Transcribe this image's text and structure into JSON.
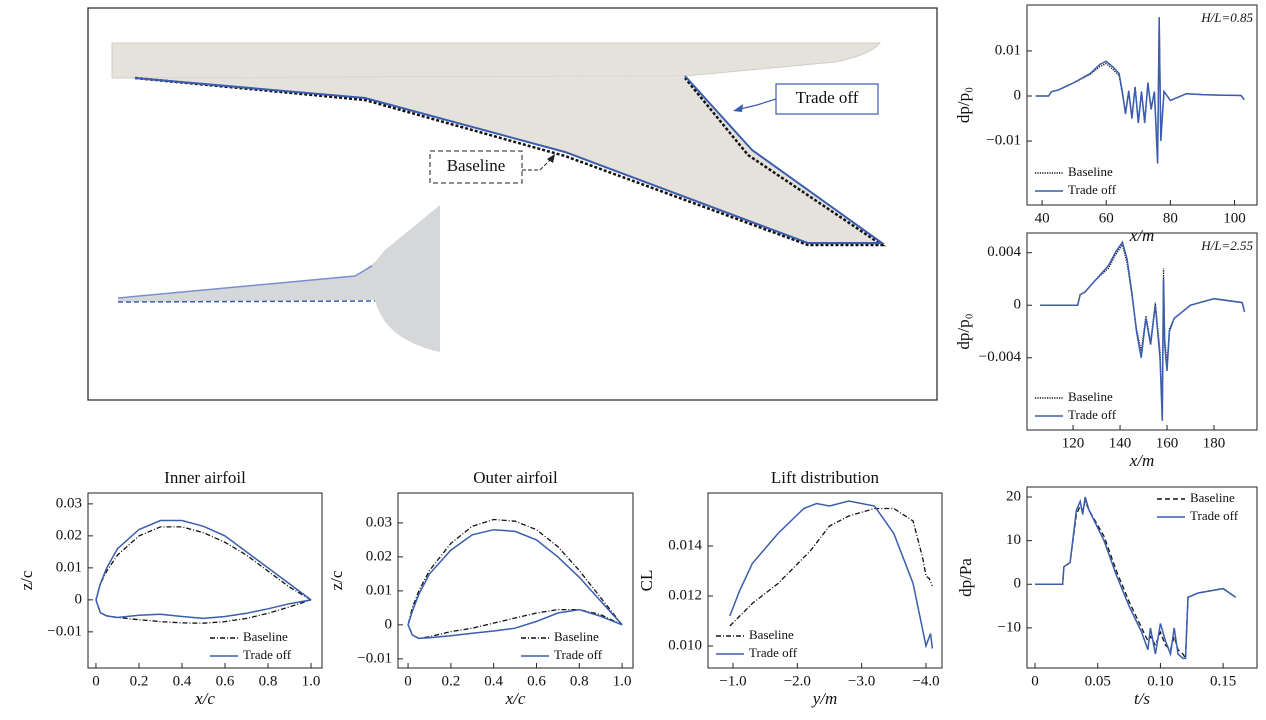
{
  "planform": {
    "labels": {
      "trade_off": "Trade off",
      "baseline": "Baseline"
    }
  },
  "chart_data": [
    {
      "type": "line",
      "annotation": "H/L=0.85",
      "xlabel": "x/m",
      "ylabel": "dp/p₀",
      "legend": "lower left",
      "xlim": [
        35.3,
        107
      ],
      "ylim": [
        -0.0242,
        0.0202
      ],
      "xticks": [
        40,
        60,
        80,
        100
      ],
      "yticks": [
        0.01,
        0,
        {
          "value": -0.01,
          "label": "−0.01"
        }
      ],
      "series": [
        {
          "name": "Baseline",
          "color": "#111111",
          "style": "dotted",
          "x": [
            38,
            42,
            43,
            45,
            50,
            55,
            58,
            60,
            62,
            64,
            65,
            66,
            67,
            68,
            69,
            70,
            71,
            72,
            73,
            74,
            75,
            76,
            76.5,
            77,
            78,
            80,
            85,
            90,
            95,
            102,
            103
          ],
          "values": [
            0,
            0,
            0.001,
            0.0013,
            0.003,
            0.0048,
            0.0065,
            0.0072,
            0.006,
            0.0045,
            0.0005,
            -0.0035,
            0.0012,
            -0.0045,
            0.002,
            -0.0055,
            0.0008,
            -0.0055,
            0.0025,
            -0.0025,
            0.0008,
            -0.013,
            0.0175,
            -0.009,
            0.001,
            -0.001,
            0.0005,
            0.0003,
            0.0002,
            0.0001,
            -0.0008
          ]
        },
        {
          "name": "Trade off",
          "color": "#3a5db0",
          "style": "solid",
          "x": [
            38,
            42,
            43,
            45,
            50,
            55,
            58,
            60,
            62,
            64,
            65,
            66,
            67,
            68,
            69,
            70,
            71,
            72,
            73,
            74,
            75,
            76,
            76.5,
            77,
            78,
            80,
            85,
            90,
            95,
            102,
            103
          ],
          "values": [
            0,
            0,
            0.001,
            0.0013,
            0.003,
            0.005,
            0.007,
            0.0077,
            0.0065,
            0.005,
            0.001,
            -0.004,
            0.001,
            -0.005,
            0.002,
            -0.006,
            0.001,
            -0.006,
            0.003,
            -0.003,
            0.001,
            -0.015,
            0.017,
            -0.01,
            0.001,
            -0.001,
            0.0005,
            0.0003,
            0.0002,
            0.0001,
            -0.0008
          ]
        }
      ]
    },
    {
      "type": "line",
      "annotation": "H/L=2.55",
      "xlabel": "x/m",
      "ylabel": "dp/p₀",
      "legend": "lower left",
      "xlim": [
        100.4,
        198.3
      ],
      "ylim": [
        -0.0095,
        0.0055
      ],
      "xticks": [
        120,
        140,
        160,
        180
      ],
      "yticks": [
        0.004,
        0,
        {
          "value": -0.004,
          "label": "−0.004"
        }
      ],
      "series": [
        {
          "name": "Baseline",
          "color": "#111111",
          "style": "dotted",
          "x": [
            106,
            122,
            123,
            125,
            130,
            135,
            138,
            141,
            143,
            145,
            147,
            149,
            151,
            153,
            155,
            157,
            158,
            158.5,
            159,
            160,
            161,
            163,
            170,
            180,
            192,
            193
          ],
          "values": [
            0,
            0,
            0.0008,
            0.001,
            0.002,
            0.0028,
            0.0038,
            0.0046,
            0.0032,
            0.0008,
            -0.0018,
            -0.0035,
            -0.0008,
            -0.0028,
            0.0002,
            -0.0035,
            -0.0078,
            0.0028,
            -0.0025,
            -0.0045,
            -0.0018,
            -0.001,
            0,
            0.0005,
            0.0002,
            -0.0005
          ]
        },
        {
          "name": "Trade off",
          "color": "#3a5db0",
          "style": "solid",
          "x": [
            106,
            122,
            123,
            125,
            130,
            135,
            138,
            141,
            143,
            145,
            147,
            149,
            151,
            153,
            155,
            157,
            158,
            158.5,
            159,
            160,
            161,
            163,
            170,
            180,
            192,
            193
          ],
          "values": [
            0,
            0,
            0.0008,
            0.001,
            0.002,
            0.003,
            0.004,
            0.0048,
            0.0035,
            0.001,
            -0.002,
            -0.004,
            -0.001,
            -0.003,
            0,
            -0.004,
            -0.0088,
            0.002,
            -0.003,
            -0.005,
            -0.002,
            -0.001,
            0,
            0.0005,
            0.0002,
            -0.0005
          ]
        }
      ]
    },
    {
      "type": "line",
      "title": "Inner airfoil",
      "xlabel": "x/c",
      "ylabel": "z/c",
      "legend": "lower right",
      "xlim": [
        -0.037,
        1.051
      ],
      "ylim": [
        -0.0213,
        0.0334
      ],
      "xticks": [
        0,
        0.2,
        0.4,
        0.6,
        0.8,
        {
          "value": 1,
          "label": "1.0"
        }
      ],
      "yticks": [
        0.03,
        0.02,
        0.01,
        0,
        {
          "value": -0.01,
          "label": "−0.01"
        }
      ],
      "series": [
        {
          "name": "Baseline",
          "color": "#111111",
          "style": "dashdot",
          "x": [
            1,
            0.9,
            0.8,
            0.7,
            0.6,
            0.5,
            0.4,
            0.3,
            0.2,
            0.1,
            0.05,
            0.02,
            0,
            0.02,
            0.05,
            0.1,
            0.2,
            0.3,
            0.4,
            0.5,
            0.6,
            0.7,
            0.8,
            0.9,
            1
          ],
          "values": [
            0,
            0.004,
            0.009,
            0.014,
            0.018,
            0.021,
            0.0228,
            0.0228,
            0.02,
            0.014,
            0.009,
            0.005,
            0,
            -0.004,
            -0.005,
            -0.0055,
            -0.0062,
            -0.0068,
            -0.0072,
            -0.0073,
            -0.0068,
            -0.0058,
            -0.0042,
            -0.0022,
            0
          ]
        },
        {
          "name": "Trade off",
          "color": "#3a5db0",
          "style": "solid",
          "x": [
            1,
            0.9,
            0.8,
            0.7,
            0.6,
            0.5,
            0.4,
            0.3,
            0.2,
            0.1,
            0.05,
            0.02,
            0,
            0.02,
            0.05,
            0.1,
            0.2,
            0.3,
            0.4,
            0.5,
            0.6,
            0.7,
            0.8,
            0.9,
            1
          ],
          "values": [
            0,
            0.005,
            0.01,
            0.015,
            0.02,
            0.023,
            0.0248,
            0.0248,
            0.022,
            0.016,
            0.01,
            0.005,
            0,
            -0.004,
            -0.005,
            -0.0055,
            -0.0048,
            -0.0045,
            -0.0052,
            -0.0058,
            -0.0052,
            -0.0042,
            -0.0028,
            -0.0012,
            0
          ]
        }
      ]
    },
    {
      "type": "line",
      "title": "Outer airfoil",
      "xlabel": "x/c",
      "ylabel": "z/c",
      "legend": "lower right",
      "xlim": [
        -0.047,
        1.051
      ],
      "ylim": [
        -0.0127,
        0.0388
      ],
      "xticks": [
        0,
        0.2,
        0.4,
        0.6,
        0.8,
        {
          "value": 1,
          "label": "1.0"
        }
      ],
      "yticks": [
        0.03,
        0.02,
        0.01,
        0,
        {
          "value": -0.01,
          "label": "−0.01"
        }
      ],
      "series": [
        {
          "name": "Baseline",
          "color": "#111111",
          "style": "dashdot",
          "x": [
            1,
            0.9,
            0.8,
            0.7,
            0.6,
            0.5,
            0.4,
            0.3,
            0.2,
            0.1,
            0.05,
            0.02,
            0,
            0.02,
            0.05,
            0.1,
            0.2,
            0.3,
            0.4,
            0.5,
            0.6,
            0.7,
            0.8,
            0.9,
            1
          ],
          "values": [
            0,
            0.008,
            0.016,
            0.023,
            0.028,
            0.0305,
            0.031,
            0.029,
            0.024,
            0.016,
            0.01,
            0.005,
            0,
            -0.003,
            -0.004,
            -0.0035,
            -0.002,
            -0.001,
            0.0005,
            0.002,
            0.0035,
            0.0045,
            0.0045,
            0.003,
            0
          ]
        },
        {
          "name": "Trade off",
          "color": "#3a5db0",
          "style": "solid",
          "x": [
            1,
            0.9,
            0.8,
            0.7,
            0.6,
            0.5,
            0.4,
            0.3,
            0.2,
            0.1,
            0.05,
            0.02,
            0,
            0.02,
            0.05,
            0.1,
            0.2,
            0.3,
            0.4,
            0.5,
            0.6,
            0.7,
            0.8,
            0.9,
            1
          ],
          "values": [
            0,
            0.007,
            0.014,
            0.02,
            0.025,
            0.0275,
            0.028,
            0.0265,
            0.022,
            0.015,
            0.009,
            0.004,
            0,
            -0.003,
            -0.004,
            -0.0038,
            -0.0032,
            -0.0025,
            -0.0018,
            -0.001,
            0.001,
            0.0035,
            0.0045,
            0.0025,
            0
          ]
        }
      ]
    },
    {
      "type": "line",
      "title": "Lift distribution",
      "xlabel": "y/m",
      "ylabel": "CL",
      "legend": "lower left",
      "xlim": [
        -0.611,
        -4.249
      ],
      "ylim": [
        0.00912,
        0.01612
      ],
      "xticks": [
        {
          "value": -1,
          "label": "−1.0"
        },
        {
          "value": -2,
          "label": "−2.0"
        },
        {
          "value": -3,
          "label": "−3.0"
        },
        {
          "value": -4,
          "label": "−4.0"
        }
      ],
      "yticks": [
        0.014,
        0.012,
        {
          "value": 0.01,
          "label": "0.010"
        }
      ],
      "series": [
        {
          "name": "Baseline",
          "color": "#111111",
          "style": "dashdot",
          "x": [
            -0.95,
            -1.3,
            -1.7,
            -2.2,
            -2.5,
            -2.8,
            -3.2,
            -3.5,
            -3.8,
            -3.95,
            -4.0,
            -4.05,
            -4.1
          ],
          "values": [
            0.0108,
            0.0117,
            0.0125,
            0.0138,
            0.0148,
            0.0152,
            0.0155,
            0.0155,
            0.015,
            0.0135,
            0.0128,
            0.0127,
            0.0124
          ]
        },
        {
          "name": "Trade off",
          "color": "#3a5db0",
          "style": "solid",
          "x": [
            -0.95,
            -1.1,
            -1.3,
            -1.7,
            -2.1,
            -2.3,
            -2.5,
            -2.8,
            -3.2,
            -3.5,
            -3.8,
            -4.0,
            -4.07,
            -4.1
          ],
          "values": [
            0.0112,
            0.0122,
            0.0133,
            0.0145,
            0.0155,
            0.0157,
            0.0156,
            0.0158,
            0.0156,
            0.0145,
            0.0125,
            0.01,
            0.0105,
            0.0099
          ]
        }
      ]
    },
    {
      "type": "line",
      "xlabel": "t/s",
      "ylabel": "dp/Pa",
      "legend": "upper right",
      "xlim": [
        -0.0064,
        0.177
      ],
      "ylim": [
        -19.2,
        22.3
      ],
      "xticks": [
        0,
        0.05,
        {
          "value": 0.1,
          "label": "0.10"
        },
        0.15
      ],
      "yticks": [
        20,
        10,
        0,
        {
          "value": -10,
          "label": "−10"
        }
      ],
      "series": [
        {
          "name": "Baseline",
          "color": "#111111",
          "style": "dashed",
          "x": [
            0,
            0.022,
            0.023,
            0.028,
            0.033,
            0.036,
            0.038,
            0.04,
            0.043,
            0.055,
            0.065,
            0.075,
            0.085,
            0.09,
            0.092,
            0.096,
            0.1,
            0.104,
            0.108,
            0.111,
            0.114,
            0.118,
            0.12,
            0.122,
            0.13,
            0.15,
            0.16
          ],
          "values": [
            0,
            0,
            4,
            5,
            16,
            18,
            17,
            19,
            17,
            11,
            3,
            -4,
            -10,
            -13,
            -12,
            -14,
            -11,
            -14,
            -15,
            -12,
            -15,
            -16,
            -17,
            -3,
            -2,
            -1,
            -3
          ]
        },
        {
          "name": "Trade off",
          "color": "#3a5db0",
          "style": "solid",
          "x": [
            0,
            0.022,
            0.023,
            0.028,
            0.033,
            0.036,
            0.038,
            0.04,
            0.043,
            0.055,
            0.065,
            0.075,
            0.085,
            0.09,
            0.092,
            0.096,
            0.1,
            0.104,
            0.108,
            0.111,
            0.114,
            0.118,
            0.12,
            0.122,
            0.13,
            0.15,
            0.16
          ],
          "values": [
            0,
            0,
            4,
            5,
            17,
            19,
            16,
            20,
            17,
            10,
            2,
            -5,
            -11,
            -15,
            -10,
            -16,
            -9,
            -13,
            -16,
            -10,
            -16,
            -17,
            -17,
            -3,
            -2,
            -1,
            -3
          ]
        }
      ]
    }
  ]
}
